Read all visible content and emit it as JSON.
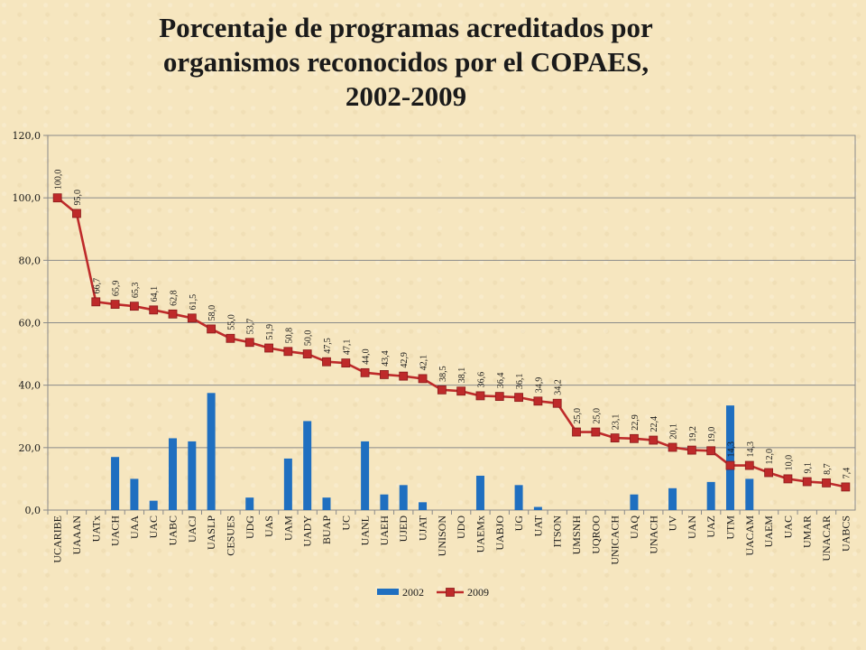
{
  "title": {
    "line1": "Porcentaje de programas acreditados por",
    "line2": "organismos reconocidos por el COPAES,",
    "line3": "2002-2009"
  },
  "chart_data": {
    "type": "bar+line",
    "ylim": [
      0,
      120
    ],
    "yticks": [
      "0,0",
      "20,0",
      "40,0",
      "60,0",
      "80,0",
      "100,0",
      "120,0"
    ],
    "ytick_values": [
      0,
      20,
      40,
      60,
      80,
      100,
      120
    ],
    "grid": "horizontal",
    "legend_position": "bottom",
    "categories": [
      "UCARIBE",
      "UAAAN",
      "UATx",
      "UACH",
      "UAA",
      "UAC",
      "UABC",
      "UACJ",
      "UASLP",
      "CESUES",
      "UDG",
      "UAS",
      "UAM",
      "UADY",
      "BUAP",
      "UC",
      "UANL",
      "UAEH",
      "UJED",
      "UJAT",
      "UNISON",
      "UDO",
      "UAEMx",
      "UABJO",
      "UG",
      "UAT",
      "ITSON",
      "UMSNH",
      "UQROO",
      "UNICACH",
      "UAQ",
      "UNACH",
      "UV",
      "UAN",
      "UAZ",
      "UTM",
      "UACAM",
      "UAEM",
      "UAC",
      "UMAR",
      "UNACAR",
      "UABCS"
    ],
    "series": [
      {
        "name": "2002",
        "type": "bar",
        "color": "#1f6fc0",
        "values": [
          0,
          0,
          0,
          17,
          10,
          3,
          23,
          22,
          37.5,
          0,
          4,
          0,
          16.5,
          28.5,
          4,
          0,
          22,
          5,
          8,
          2.5,
          0,
          0,
          11,
          0,
          8,
          1,
          0,
          0,
          0,
          0,
          5,
          0,
          7,
          0,
          9,
          33.5,
          10,
          0,
          0,
          0,
          0,
          0
        ]
      },
      {
        "name": "2009",
        "type": "line",
        "color": "#be2a2a",
        "values": [
          100,
          95,
          66.7,
          65.9,
          65.3,
          64.1,
          62.8,
          61.5,
          58,
          55,
          53.7,
          51.9,
          50.8,
          50,
          47.5,
          47.1,
          44,
          43.4,
          42.9,
          42.1,
          38.5,
          38.1,
          36.6,
          36.4,
          36.1,
          34.9,
          34.2,
          25,
          25,
          23.1,
          22.9,
          22.4,
          20.1,
          19.2,
          19,
          14.3,
          14.3,
          12,
          10,
          9.1,
          8.7,
          7.4
        ],
        "labels": [
          "100,0",
          "95,0",
          "66,7",
          "65,9",
          "65,3",
          "64,1",
          "62,8",
          "61,5",
          "58,0",
          "55,0",
          "53,7",
          "51,9",
          "50,8",
          "50,0",
          "47,5",
          "47,1",
          "44,0",
          "43,4",
          "42,9",
          "42,1",
          "38,5",
          "38,1",
          "36,6",
          "36,4",
          "36,1",
          "34,9",
          "34,2",
          "25,0",
          "25,0",
          "23,1",
          "22,9",
          "22,4",
          "20,1",
          "19,2",
          "19,0",
          "14,3",
          "14,3",
          "12,0",
          "10,0",
          "9,1",
          "8,7",
          "7,4"
        ]
      }
    ]
  }
}
